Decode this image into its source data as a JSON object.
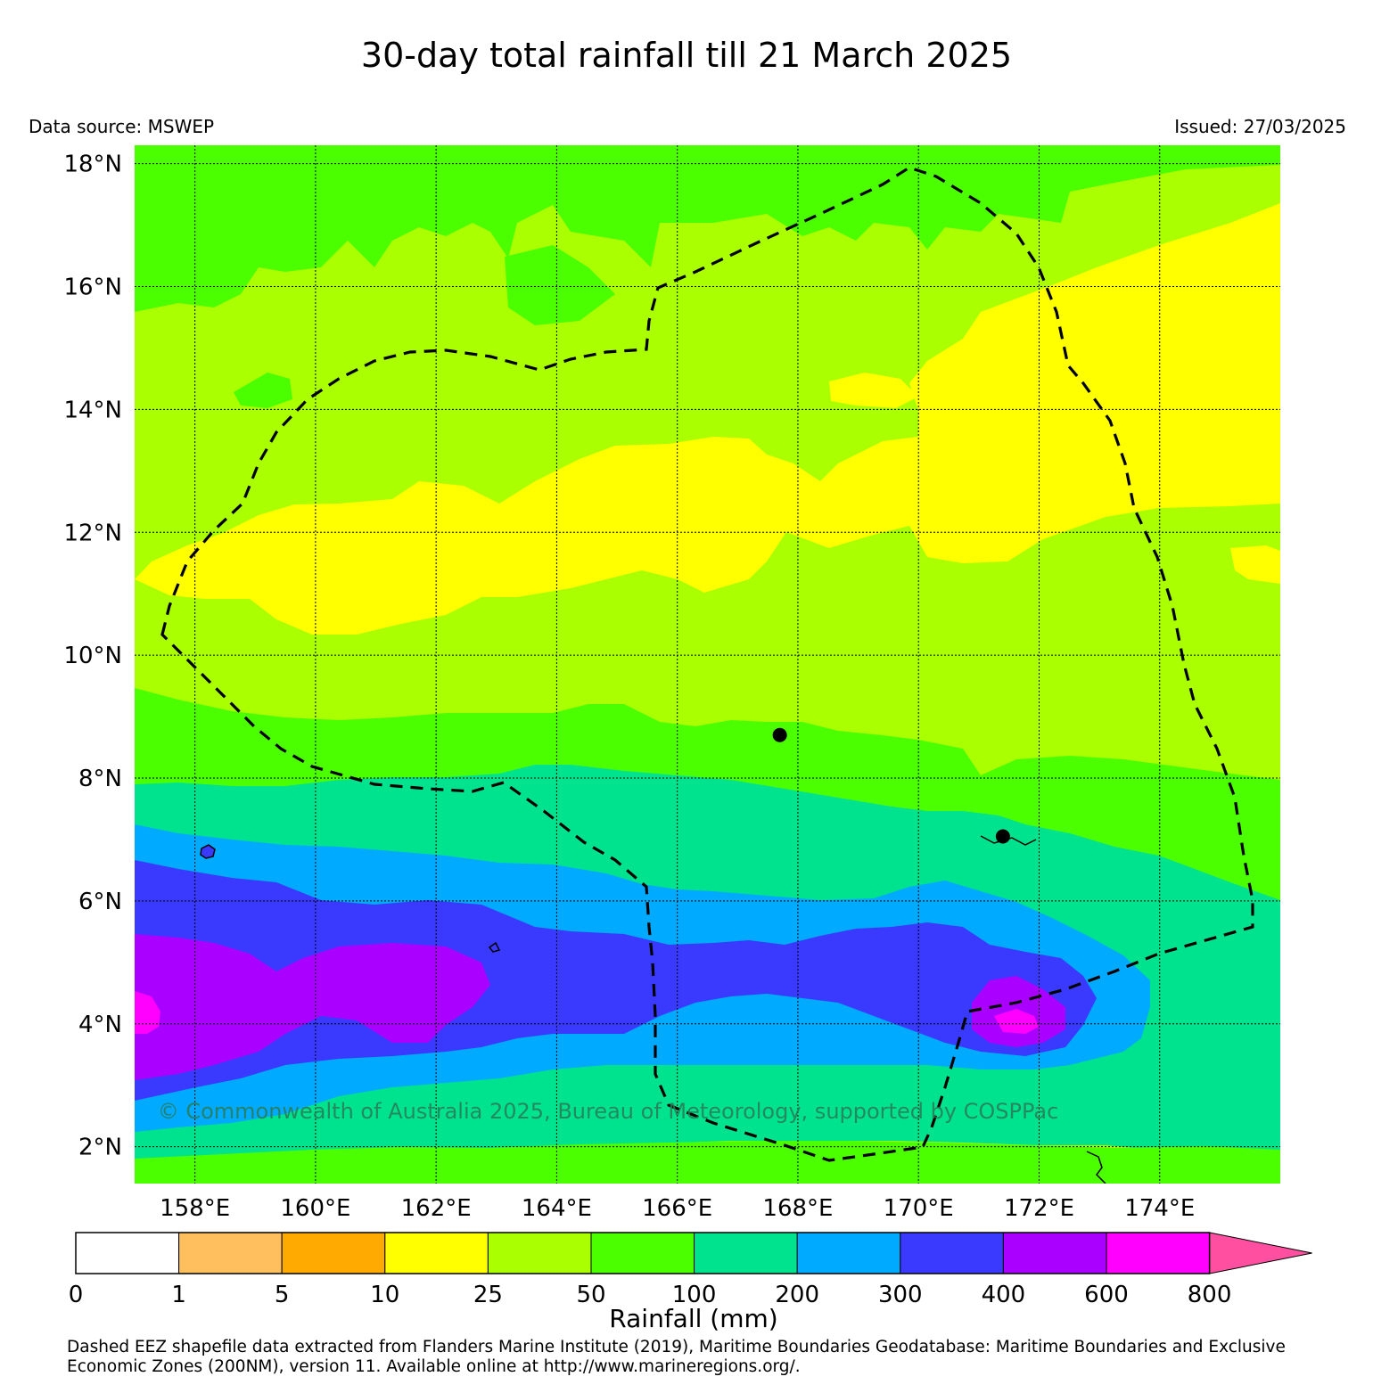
{
  "title": "30-day total rainfall till 21 March 2025",
  "data_source": "Data source: MSWEP",
  "issued": "Issued: 27/03/2025",
  "copyright": "© Commonwealth of Australia 2025, Bureau of Meteorology, supported by COSPPac",
  "colorbar_label": "Rainfall (mm)",
  "footnote": "Dashed EEZ shapefile data extracted from Flanders Marine Institute (2019), Maritime Boundaries Geodatabase: Maritime Boundaries and Exclusive Economic Zones (200NM), version 11. Available online at http://www.marineregions.org/.",
  "lat_ticks": [
    "18°N",
    "16°N",
    "14°N",
    "12°N",
    "10°N",
    "8°N",
    "6°N",
    "4°N",
    "2°N"
  ],
  "lon_ticks": [
    "158°E",
    "160°E",
    "162°E",
    "164°E",
    "166°E",
    "168°E",
    "170°E",
    "172°E",
    "174°E"
  ],
  "colorbar": {
    "ticks": [
      "0",
      "1",
      "5",
      "10",
      "25",
      "50",
      "100",
      "200",
      "300",
      "400",
      "600",
      "800"
    ],
    "colors": [
      "#ffffff",
      "#ffbf5f",
      "#ffaa00",
      "#ffff00",
      "#aaff00",
      "#4cff00",
      "#00e38e",
      "#00aaff",
      "#3a3aff",
      "#aa00ff",
      "#ff00ff"
    ],
    "extend_color": "#ff4fa0"
  },
  "map": {
    "lon_range": [
      157,
      176
    ],
    "lat_range": [
      1.4,
      18.3
    ],
    "eez_color": "#000000",
    "islands": [
      {
        "lon": 167.7,
        "lat": 8.7
      },
      {
        "lon": 171.4,
        "lat": 7.05
      }
    ]
  }
}
